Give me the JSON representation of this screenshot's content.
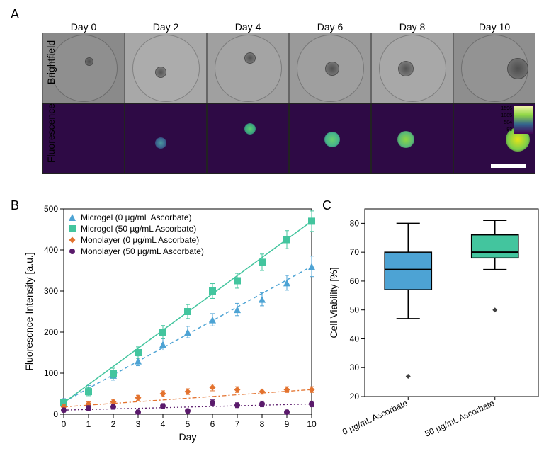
{
  "panel_labels": {
    "A": "A",
    "B": "B",
    "C": "C"
  },
  "panel_label_fontsize": 18,
  "label_color": "#000000",
  "panelA": {
    "day_labels": [
      "Day 0",
      "Day 2",
      "Day 4",
      "Day 6",
      "Day 8",
      "Day 10"
    ],
    "row_labels": [
      "Brightfield",
      "Fluorescence"
    ],
    "brightfield": {
      "bg_colors": [
        "#8a8a8a",
        "#a8a8a8",
        "#a0a0a0",
        "#9a9a9a",
        "#a4a4a4",
        "#8e8e8e"
      ],
      "cell_sizes": [
        12,
        16,
        16,
        20,
        22,
        30
      ],
      "cell_positions": [
        [
          65,
          40
        ],
        [
          50,
          55
        ],
        [
          60,
          35
        ],
        [
          60,
          50
        ],
        [
          48,
          50
        ],
        [
          90,
          50
        ]
      ]
    },
    "fluorescence": {
      "bg_color": "#2e0a45",
      "blob_colors": [
        "#2e0a45",
        "#3a5e8c",
        "#3aa080",
        "#46b28c",
        "#58b878",
        "#7ace4a"
      ],
      "blob_core_colors": [
        "#2e0a45",
        "#4a9a9e",
        "#5cd070",
        "#68d070",
        "#8fd744",
        "#e6e419"
      ],
      "blob_sizes": [
        0,
        16,
        16,
        22,
        24,
        34
      ]
    },
    "colorbar": {
      "max": 1596,
      "q3": 1085,
      "q1": 584,
      "min": 83
    },
    "scalebar_color": "#ffffff"
  },
  "panelB": {
    "type": "line+scatter",
    "xlabel": "Day",
    "ylabel": "Fluorescnce Intensity [a.u.]",
    "xlim": [
      0,
      10
    ],
    "ylim": [
      0,
      500
    ],
    "xtick_step": 1,
    "ytick_step": 100,
    "xticks": [
      0,
      1,
      2,
      3,
      4,
      5,
      6,
      7,
      8,
      9,
      10
    ],
    "yticks": [
      0,
      100,
      200,
      300,
      400,
      500
    ],
    "axis_fontsize": 12,
    "label_fontsize": 14,
    "background_color": "#ffffff",
    "series": [
      {
        "name": "Microgel (0 µg/mL Ascorbate)",
        "color": "#4da3d4",
        "marker": "triangle",
        "marker_size": 10,
        "dash": "5,4",
        "line_width": 1.5,
        "x": [
          0,
          1,
          2,
          3,
          4,
          5,
          6,
          7,
          8,
          9,
          10
        ],
        "y": [
          30,
          60,
          95,
          130,
          170,
          200,
          230,
          255,
          280,
          320,
          360
        ],
        "yerr": [
          8,
          10,
          12,
          12,
          14,
          14,
          15,
          15,
          16,
          18,
          25
        ]
      },
      {
        "name": "Microgel (50 µg/mL Ascorbate)",
        "color": "#43c59e",
        "marker": "square",
        "marker_size": 10,
        "dash": "none",
        "line_width": 1.5,
        "x": [
          0,
          1,
          2,
          3,
          4,
          5,
          6,
          7,
          8,
          9,
          10
        ],
        "y": [
          28,
          55,
          100,
          150,
          200,
          250,
          300,
          325,
          370,
          425,
          470
        ],
        "yerr": [
          8,
          10,
          12,
          14,
          16,
          17,
          18,
          18,
          20,
          22,
          25
        ]
      },
      {
        "name": "Monolayer (0 µg/mL Ascorbate)",
        "color": "#e3722e",
        "marker": "diamond",
        "marker_size": 9,
        "dash": "6,3,2,3",
        "line_width": 1.3,
        "x": [
          0,
          1,
          2,
          3,
          4,
          5,
          6,
          7,
          8,
          9,
          10
        ],
        "y": [
          18,
          25,
          30,
          40,
          50,
          55,
          65,
          60,
          55,
          60,
          60
        ],
        "yerr": [
          5,
          5,
          6,
          6,
          7,
          7,
          8,
          7,
          6,
          7,
          7
        ]
      },
      {
        "name": "Monolayer (50 µg/mL Ascorbate)",
        "color": "#5a1a6b",
        "marker": "circle",
        "marker_size": 8,
        "dash": "2,3",
        "line_width": 1.3,
        "x": [
          0,
          1,
          2,
          3,
          4,
          5,
          6,
          7,
          8,
          9,
          10
        ],
        "y": [
          10,
          15,
          18,
          5,
          20,
          8,
          28,
          22,
          25,
          5,
          25
        ],
        "yerr": [
          5,
          6,
          6,
          5,
          6,
          5,
          7,
          6,
          7,
          5,
          7
        ]
      }
    ],
    "legend_position": "upper-left"
  },
  "panelC": {
    "type": "boxplot",
    "ylabel": "Cell Viability [%]",
    "ylim": [
      20,
      85
    ],
    "yticks": [
      20,
      30,
      40,
      50,
      60,
      70,
      80
    ],
    "categories": [
      "0 µg/mL Ascorbate",
      "50 µg/mL Ascorbate"
    ],
    "axis_fontsize": 12,
    "label_fontsize": 14,
    "box_width": 0.6,
    "line_width": 1.5,
    "boxes": [
      {
        "color": "#4da3d4",
        "q1": 57,
        "median": 64,
        "q3": 70,
        "whisker_low": 47,
        "whisker_high": 80,
        "outliers": [
          27
        ]
      },
      {
        "color": "#43c59e",
        "q1": 68,
        "median": 70,
        "q3": 76,
        "whisker_low": 64,
        "whisker_high": 81,
        "outliers": [
          50
        ]
      }
    ],
    "outlier_marker": "diamond",
    "outlier_color": "#404040",
    "outlier_size": 7
  }
}
